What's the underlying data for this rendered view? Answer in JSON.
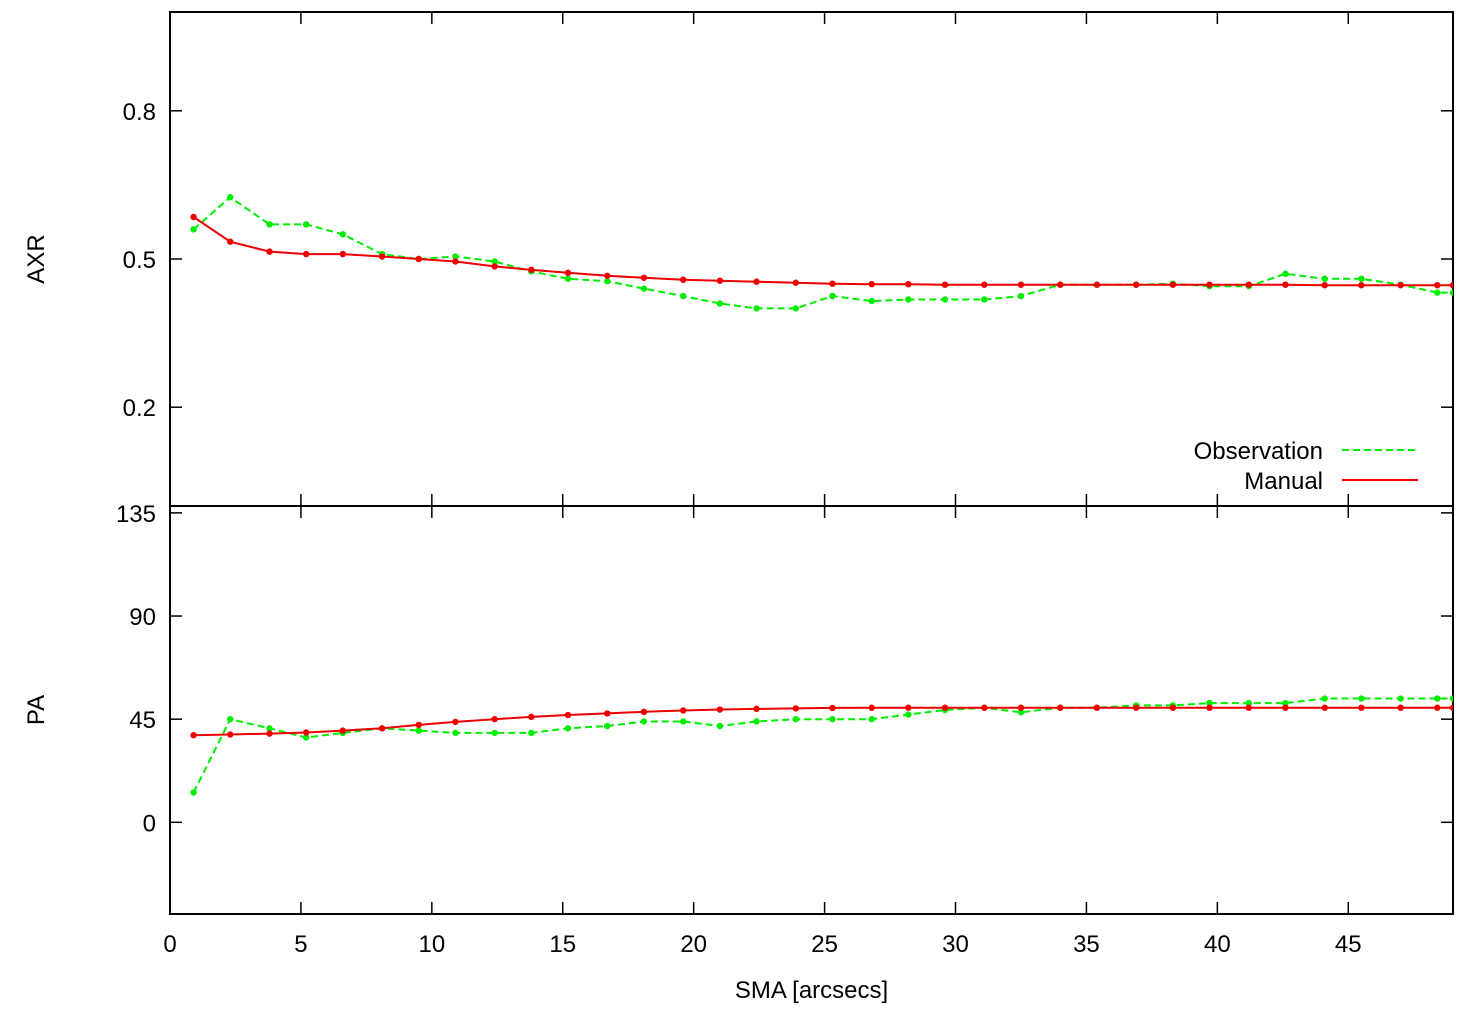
{
  "chart_data": [
    {
      "type": "line",
      "ylabel": "AXR",
      "xlabel": "",
      "xlim": [
        0,
        49
      ],
      "ylim": [
        0.0,
        1.0
      ],
      "yticks": [
        "0.2",
        "0.5",
        "0.8"
      ],
      "ytick_values": [
        0.2,
        0.5,
        0.8
      ],
      "legend": {
        "placement": "bottom-right"
      },
      "series": [
        {
          "name": "Observation",
          "color": "#00ee00",
          "style": "dashed",
          "x": [
            0.9,
            2.3,
            3.8,
            5.2,
            6.6,
            8.1,
            9.5,
            10.9,
            12.4,
            13.8,
            15.2,
            16.7,
            18.1,
            19.6,
            21.0,
            22.4,
            23.9,
            25.3,
            26.8,
            28.2,
            29.6,
            31.1,
            32.5,
            34.0,
            35.4,
            36.9,
            38.3,
            39.7,
            41.2,
            42.6,
            44.1,
            45.5,
            47.0,
            48.4,
            49.0
          ],
          "y": [
            0.56,
            0.625,
            0.57,
            0.57,
            0.55,
            0.51,
            0.5,
            0.505,
            0.495,
            0.475,
            0.46,
            0.455,
            0.44,
            0.425,
            0.41,
            0.4,
            0.4,
            0.425,
            0.415,
            0.418,
            0.418,
            0.418,
            0.425,
            0.448,
            0.448,
            0.448,
            0.45,
            0.445,
            0.445,
            0.47,
            0.46,
            0.46,
            0.448,
            0.432,
            0.432
          ]
        },
        {
          "name": "Manual",
          "color": "#ee0000",
          "style": "solid",
          "x": [
            0.9,
            2.3,
            3.8,
            5.2,
            6.6,
            8.1,
            9.5,
            10.9,
            12.4,
            13.8,
            15.2,
            16.7,
            18.1,
            19.6,
            21.0,
            22.4,
            23.9,
            25.3,
            26.8,
            28.2,
            29.6,
            31.1,
            32.5,
            34.0,
            35.4,
            36.9,
            38.3,
            39.7,
            41.2,
            42.6,
            44.1,
            45.5,
            47.0,
            48.4,
            49.0
          ],
          "y": [
            0.585,
            0.535,
            0.515,
            0.51,
            0.51,
            0.505,
            0.5,
            0.495,
            0.485,
            0.478,
            0.472,
            0.466,
            0.462,
            0.458,
            0.456,
            0.454,
            0.452,
            0.45,
            0.449,
            0.449,
            0.448,
            0.448,
            0.448,
            0.448,
            0.448,
            0.448,
            0.448,
            0.448,
            0.448,
            0.448,
            0.447,
            0.447,
            0.447,
            0.447,
            0.447
          ]
        }
      ]
    },
    {
      "type": "line",
      "ylabel": "PA",
      "xlabel": "SMA [arcsecs]",
      "xlim": [
        0,
        49
      ],
      "ylim": [
        -40,
        138
      ],
      "xticks": [
        "0",
        "5",
        "10",
        "15",
        "20",
        "25",
        "30",
        "35",
        "40",
        "45"
      ],
      "xtick_values": [
        0,
        5,
        10,
        15,
        20,
        25,
        30,
        35,
        40,
        45
      ],
      "yticks": [
        "0",
        "45",
        "90",
        "135"
      ],
      "ytick_values": [
        0,
        45,
        90,
        135
      ],
      "series": [
        {
          "name": "Observation",
          "color": "#00ee00",
          "style": "dashed",
          "x": [
            0.9,
            2.3,
            3.8,
            5.2,
            6.6,
            8.1,
            9.5,
            10.9,
            12.4,
            13.8,
            15.2,
            16.7,
            18.1,
            19.6,
            21.0,
            22.4,
            23.9,
            25.3,
            26.8,
            28.2,
            29.6,
            31.1,
            32.5,
            34.0,
            35.4,
            36.9,
            38.3,
            39.7,
            41.2,
            42.6,
            44.1,
            45.5,
            47.0,
            48.4,
            49.0
          ],
          "y": [
            13,
            45,
            41,
            37,
            39,
            41,
            40,
            39,
            39,
            39,
            41,
            42,
            44,
            44,
            42,
            44,
            45,
            45,
            45,
            47,
            49,
            50,
            48,
            50,
            50,
            51,
            51,
            52,
            52,
            52,
            54,
            54,
            54,
            54,
            54
          ]
        },
        {
          "name": "Manual",
          "color": "#ee0000",
          "style": "solid",
          "x": [
            0.9,
            2.3,
            3.8,
            5.2,
            6.6,
            8.1,
            9.5,
            10.9,
            12.4,
            13.8,
            15.2,
            16.7,
            18.1,
            19.6,
            21.0,
            22.4,
            23.9,
            25.3,
            26.8,
            28.2,
            29.6,
            31.1,
            32.5,
            34.0,
            35.4,
            36.9,
            38.3,
            39.7,
            41.2,
            42.6,
            44.1,
            45.5,
            47.0,
            48.4,
            49.0
          ],
          "y": [
            38,
            38.3,
            38.7,
            39.2,
            40,
            41,
            42.5,
            43.8,
            45,
            46,
            46.8,
            47.5,
            48.2,
            48.8,
            49.2,
            49.5,
            49.7,
            49.9,
            50,
            50,
            50,
            50,
            50,
            50,
            50,
            50,
            50,
            50,
            50,
            50,
            50,
            50,
            50,
            50,
            50
          ]
        }
      ]
    }
  ]
}
